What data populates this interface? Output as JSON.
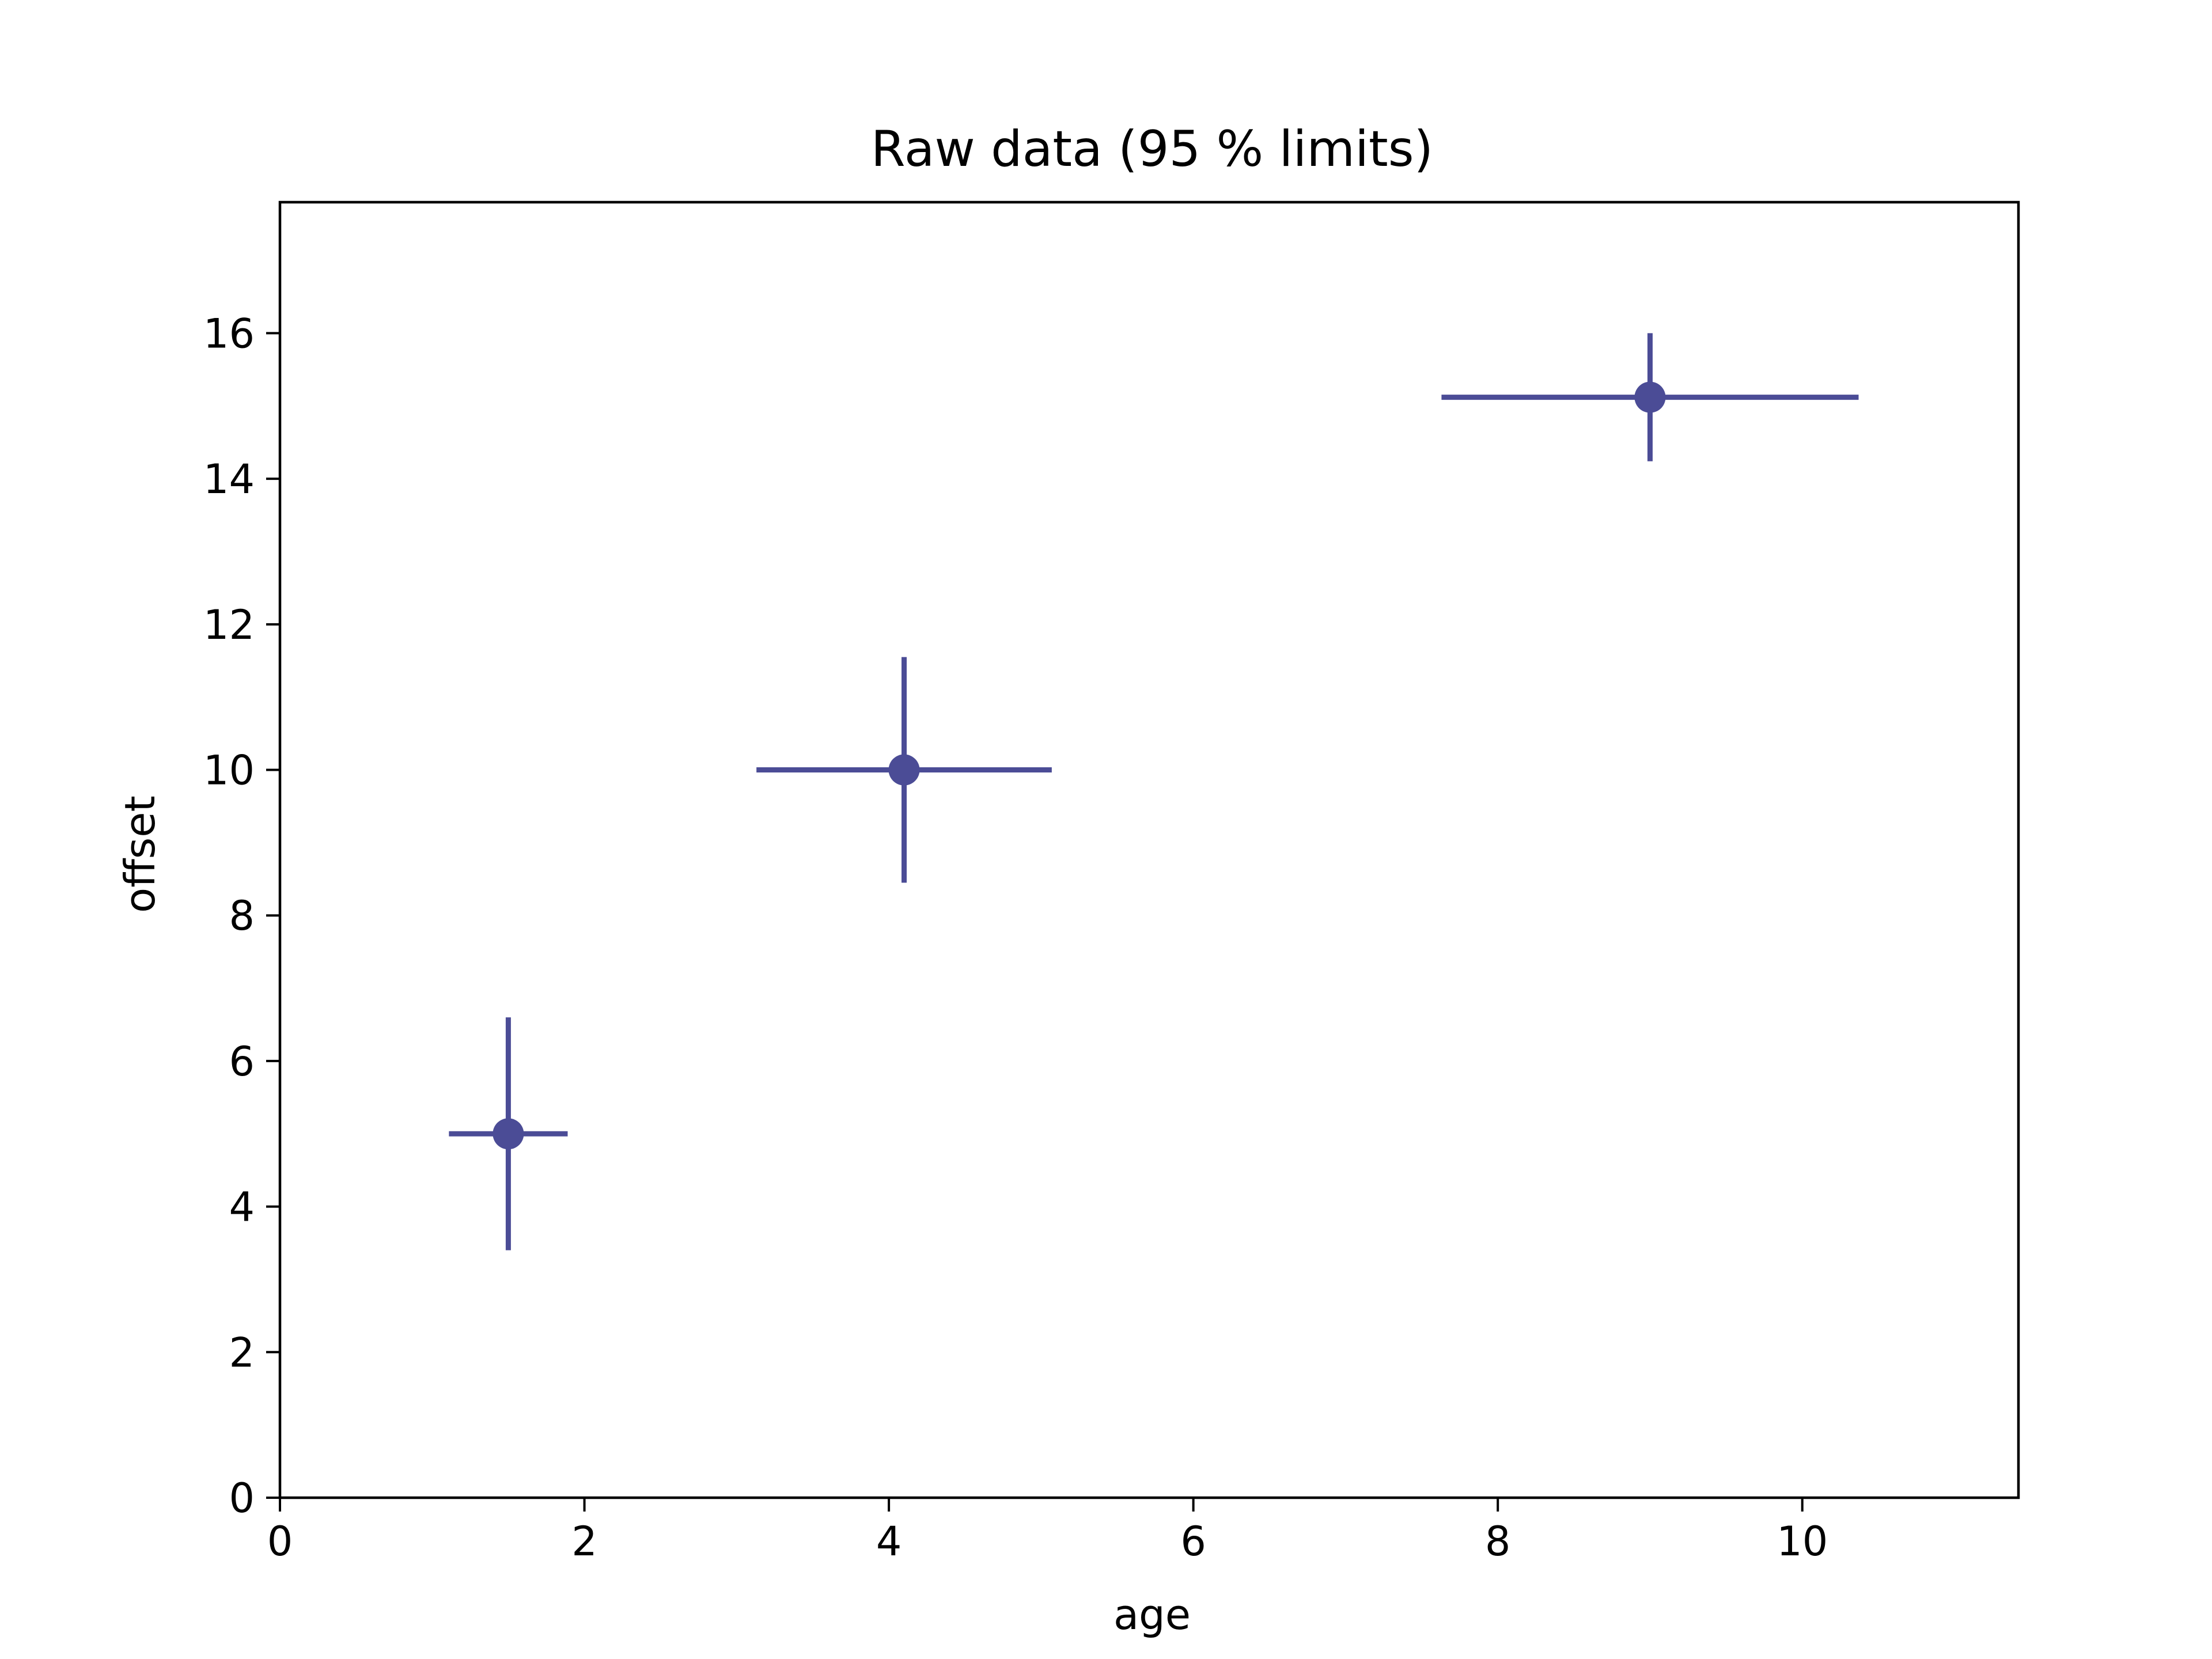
{
  "chart_data": {
    "type": "scatter",
    "title": "Raw data (95 % limits)",
    "xlabel": "age",
    "ylabel": "offset",
    "xlim": [
      0,
      11.42
    ],
    "ylim": [
      0,
      17.8
    ],
    "xticks": [
      0,
      2,
      4,
      6,
      8,
      10
    ],
    "yticks": [
      0,
      2,
      4,
      6,
      8,
      10,
      12,
      14,
      16
    ],
    "grid": false,
    "color": "#4b4c96",
    "points": [
      {
        "x": 1.5,
        "y": 5.0,
        "xerr": 0.39,
        "yerr": 1.6
      },
      {
        "x": 4.1,
        "y": 10.0,
        "xerr": 0.97,
        "yerr": 1.55
      },
      {
        "x": 9.0,
        "y": 15.12,
        "xerr": 1.37,
        "yerr": 0.88
      }
    ]
  }
}
